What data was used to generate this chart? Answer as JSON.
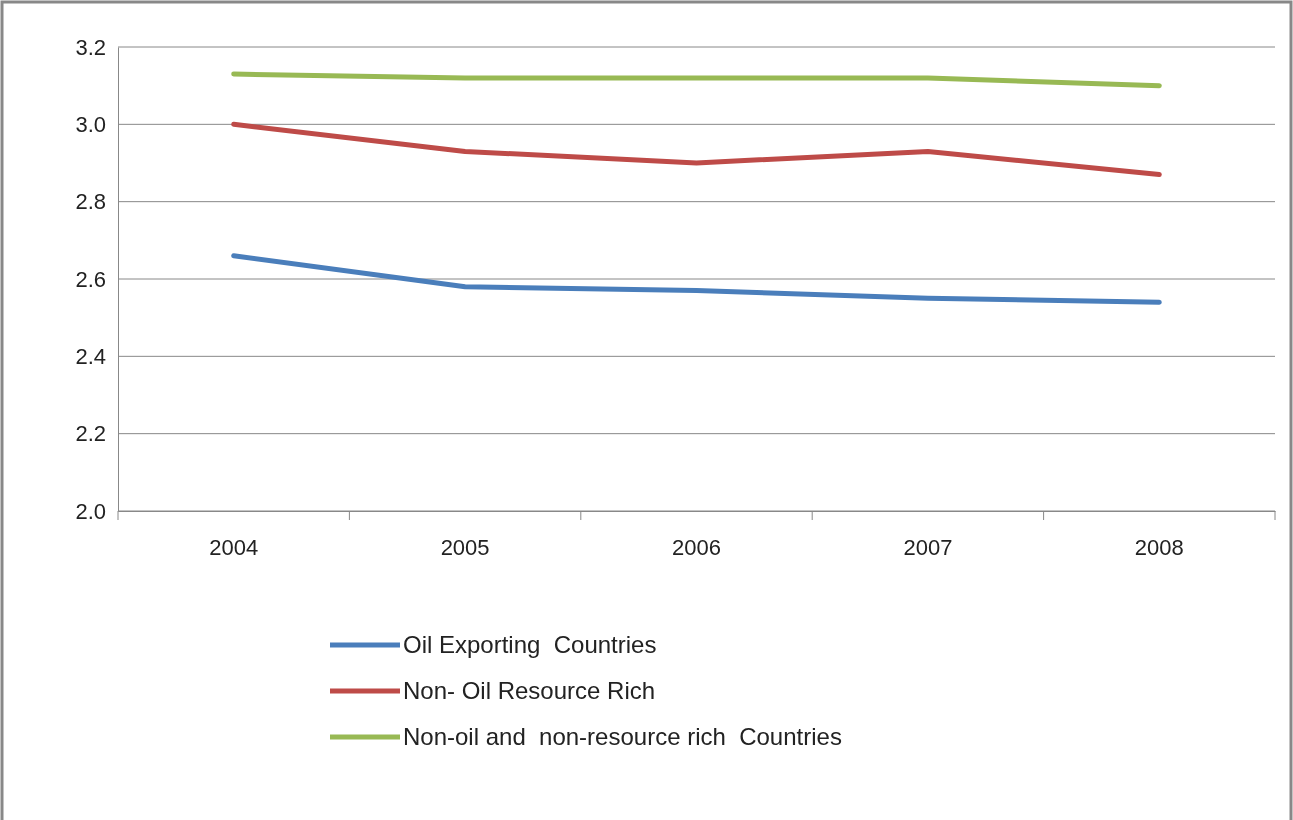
{
  "chart_data": {
    "type": "line",
    "categories": [
      "2004",
      "2005",
      "2006",
      "2007",
      "2008"
    ],
    "series": [
      {
        "name": "Oil Exporting  Countries",
        "color": "#4a7ebb",
        "values": [
          2.66,
          2.58,
          2.57,
          2.55,
          2.54
        ]
      },
      {
        "name": "Non- Oil Resource Rich",
        "color": "#be4b48",
        "values": [
          3.0,
          2.93,
          2.9,
          2.93,
          2.87
        ]
      },
      {
        "name": "Non-oil and  non-resource rich  Countries",
        "color": "#98b954",
        "values": [
          3.13,
          3.12,
          3.12,
          3.12,
          3.1
        ]
      }
    ],
    "ylim": [
      2.0,
      3.2
    ],
    "yticks": [
      {
        "value": 2.0,
        "label": "2.0"
      },
      {
        "value": 2.2,
        "label": "2.2"
      },
      {
        "value": 2.4,
        "label": "2.4"
      },
      {
        "value": 2.6,
        "label": "2.6"
      },
      {
        "value": 2.8,
        "label": "2.8"
      },
      {
        "value": 3.0,
        "label": "3.0"
      },
      {
        "value": 3.2,
        "label": "3.2"
      }
    ],
    "grid": "y",
    "legend": "bottom",
    "marker": "none",
    "line_style": "solid"
  }
}
